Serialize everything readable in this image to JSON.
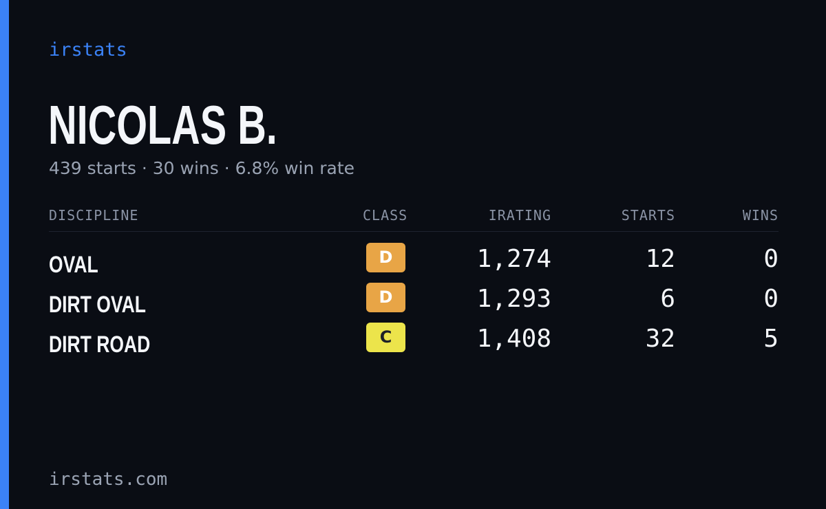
{
  "brand": "irstats",
  "driver": {
    "name": "NICOLAS B.",
    "summary": "439 starts · 30 wins · 6.8% win rate"
  },
  "table": {
    "headers": {
      "discipline": "DISCIPLINE",
      "class": "CLASS",
      "irating": "IRATING",
      "starts": "STARTS",
      "wins": "WINS"
    },
    "rows": [
      {
        "discipline": "OVAL",
        "class": "D",
        "class_color": "#e8a546",
        "irating": "1,274",
        "starts": "12",
        "wins": "0"
      },
      {
        "discipline": "DIRT OVAL",
        "class": "D",
        "class_color": "#e8a546",
        "irating": "1,293",
        "starts": "6",
        "wins": "0"
      },
      {
        "discipline": "DIRT ROAD",
        "class": "C",
        "class_color": "#ece44b",
        "irating": "1,408",
        "starts": "32",
        "wins": "5"
      }
    ]
  },
  "footer": "irstats.com",
  "colors": {
    "accent": "#3b82f6",
    "background": "#0a0d14"
  }
}
